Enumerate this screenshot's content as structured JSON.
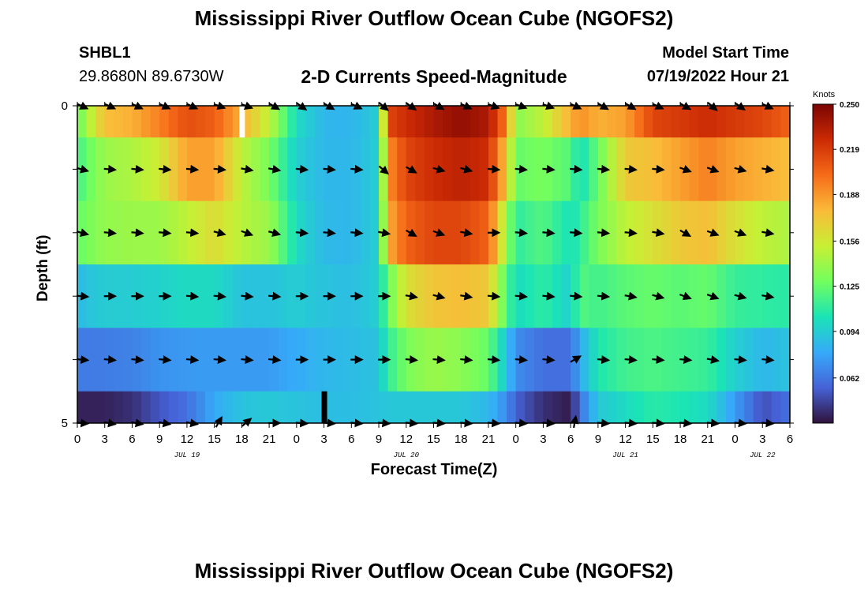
{
  "header": {
    "title": "Mississippi River Outflow Ocean Cube (NGOFS2)",
    "station_id": "SHBL1",
    "station_coords": "29.8680N  89.6730W",
    "subtitle": "2-D Currents Speed-Magnitude",
    "model_start_label": "Model Start Time",
    "model_start_value": "07/19/2022 Hour 21"
  },
  "footer": {
    "title": "Mississippi River Outflow Ocean Cube (NGOFS2)"
  },
  "chart_data": {
    "type": "heatmap",
    "title": "2-D Currents Speed-Magnitude",
    "xlabel": "Forecast Time(Z)",
    "ylabel": "Depth (ft)",
    "x_tick_labels": [
      "0",
      "3",
      "6",
      "9",
      "12",
      "15",
      "18",
      "21",
      "0",
      "3",
      "6",
      "9",
      "12",
      "15",
      "18",
      "21",
      "0",
      "3",
      "6",
      "9",
      "12",
      "15",
      "18",
      "21",
      "0",
      "3",
      "6"
    ],
    "x_range_hours": [
      0,
      78
    ],
    "date_labels": [
      {
        "text": "JUL 19",
        "hour": 12
      },
      {
        "text": "JUL 20",
        "hour": 36
      },
      {
        "text": "JUL 21",
        "hour": 60
      },
      {
        "text": "JUL 22",
        "hour": 75
      }
    ],
    "y_tick_labels": [
      "0",
      "5"
    ],
    "y_range": [
      0,
      5
    ],
    "colorbar": {
      "unit": "Knots",
      "min": 0.031,
      "max": 0.25,
      "ticks": [
        "0.250",
        "0.219",
        "0.188",
        "0.156",
        "0.125",
        "0.094",
        "0.062"
      ],
      "colors": [
        "#30123b",
        "#4662d7",
        "#36aaf9",
        "#1ae4b6",
        "#72fe5e",
        "#c8ef34",
        "#faba39",
        "#f66b19",
        "#cb2a04",
        "#7a0403"
      ]
    },
    "depth_layers": [
      0,
      1,
      2,
      3,
      4,
      5
    ],
    "speed_keyframes": [
      {
        "hour": 0,
        "values": [
          0.125,
          0.116,
          0.125,
          0.087,
          0.064,
          0.036
        ]
      },
      {
        "hour": 3,
        "values": [
          0.175,
          0.14,
          0.138,
          0.094,
          0.064,
          0.036
        ]
      },
      {
        "hour": 6,
        "values": [
          0.18,
          0.145,
          0.14,
          0.094,
          0.066,
          0.04
        ]
      },
      {
        "hour": 9,
        "values": [
          0.195,
          0.155,
          0.14,
          0.096,
          0.072,
          0.052
        ]
      },
      {
        "hour": 12,
        "values": [
          0.212,
          0.185,
          0.15,
          0.1,
          0.074,
          0.06
        ]
      },
      {
        "hour": 15,
        "values": [
          0.206,
          0.185,
          0.162,
          0.1,
          0.075,
          0.08
        ]
      },
      {
        "hour": 18,
        "values": [
          0.18,
          0.15,
          0.148,
          0.09,
          0.075,
          0.09
        ]
      },
      {
        "hour": 21,
        "values": [
          0.15,
          0.13,
          0.14,
          0.09,
          0.075,
          0.092
        ]
      },
      {
        "hour": 24,
        "values": [
          0.1,
          0.095,
          0.1,
          0.094,
          0.08,
          0.09
        ]
      },
      {
        "hour": 27,
        "values": [
          0.085,
          0.085,
          0.086,
          0.09,
          0.085,
          0.088
        ]
      },
      {
        "hour": 30,
        "values": [
          0.084,
          0.085,
          0.085,
          0.088,
          0.087,
          0.088
        ]
      },
      {
        "hour": 33,
        "values": [
          0.095,
          0.095,
          0.095,
          0.095,
          0.09,
          0.09
        ]
      },
      {
        "hour": 34,
        "values": [
          0.215,
          0.19,
          0.18,
          0.125,
          0.11,
          0.092
        ]
      },
      {
        "hour": 36,
        "values": [
          0.225,
          0.215,
          0.205,
          0.16,
          0.13,
          0.092
        ]
      },
      {
        "hour": 39,
        "values": [
          0.235,
          0.225,
          0.215,
          0.172,
          0.14,
          0.092
        ]
      },
      {
        "hour": 42,
        "values": [
          0.243,
          0.23,
          0.215,
          0.175,
          0.135,
          0.092
        ]
      },
      {
        "hour": 45,
        "values": [
          0.235,
          0.225,
          0.205,
          0.17,
          0.125,
          0.085
        ]
      },
      {
        "hour": 47,
        "values": [
          0.195,
          0.17,
          0.14,
          0.12,
          0.09,
          0.07
        ]
      },
      {
        "hour": 48,
        "values": [
          0.135,
          0.125,
          0.11,
          0.1,
          0.07,
          0.055
        ]
      },
      {
        "hour": 51,
        "values": [
          0.15,
          0.13,
          0.12,
          0.11,
          0.06,
          0.04
        ]
      },
      {
        "hour": 54,
        "values": [
          0.18,
          0.12,
          0.102,
          0.095,
          0.06,
          0.034
        ]
      },
      {
        "hour": 55,
        "values": [
          0.19,
          0.1,
          0.11,
          0.12,
          0.08,
          0.06
        ]
      },
      {
        "hour": 57,
        "values": [
          0.18,
          0.125,
          0.13,
          0.115,
          0.105,
          0.092
        ]
      },
      {
        "hour": 60,
        "values": [
          0.185,
          0.17,
          0.15,
          0.122,
          0.115,
          0.1
        ]
      },
      {
        "hour": 63,
        "values": [
          0.215,
          0.175,
          0.16,
          0.125,
          0.118,
          0.108
        ]
      },
      {
        "hour": 66,
        "values": [
          0.22,
          0.185,
          0.17,
          0.122,
          0.115,
          0.105
        ]
      },
      {
        "hour": 69,
        "values": [
          0.225,
          0.195,
          0.175,
          0.125,
          0.112,
          0.1
        ]
      },
      {
        "hour": 72,
        "values": [
          0.22,
          0.185,
          0.16,
          0.112,
          0.095,
          0.075
        ]
      },
      {
        "hour": 75,
        "values": [
          0.215,
          0.18,
          0.15,
          0.11,
          0.085,
          0.05
        ]
      },
      {
        "hour": 78,
        "values": [
          0.205,
          0.175,
          0.145,
          0.108,
          0.09,
          0.06
        ]
      }
    ],
    "vectors": {
      "hours": [
        0,
        3,
        6,
        9,
        12,
        15,
        18,
        21,
        24,
        27,
        30,
        33,
        36,
        39,
        42,
        45,
        48,
        51,
        54,
        57,
        60,
        63,
        66,
        69,
        72,
        75
      ],
      "note": "direction_deg, 0 = east, positive = rotation toward south",
      "rows": [
        [
          25,
          25,
          25,
          25,
          25,
          20,
          20,
          30,
          35,
          30,
          25,
          40,
          35,
          30,
          25,
          20,
          20,
          20,
          25,
          30,
          30,
          25,
          30,
          40,
          35,
          25
        ],
        [
          15,
          5,
          5,
          5,
          5,
          5,
          10,
          10,
          5,
          5,
          5,
          40,
          30,
          15,
          15,
          5,
          5,
          5,
          5,
          5,
          5,
          5,
          20,
          20,
          15,
          10
        ],
        [
          15,
          5,
          5,
          5,
          5,
          15,
          20,
          15,
          5,
          5,
          5,
          10,
          30,
          20,
          10,
          0,
          5,
          5,
          5,
          5,
          5,
          10,
          30,
          20,
          20,
          10
        ],
        [
          5,
          0,
          0,
          0,
          5,
          5,
          5,
          5,
          0,
          0,
          0,
          0,
          10,
          15,
          10,
          5,
          5,
          5,
          5,
          5,
          10,
          15,
          20,
          20,
          15,
          10
        ],
        [
          5,
          5,
          5,
          5,
          5,
          5,
          5,
          5,
          0,
          0,
          0,
          0,
          5,
          5,
          5,
          5,
          5,
          5,
          -30,
          5,
          5,
          5,
          5,
          10,
          5,
          5
        ],
        [
          5,
          10,
          10,
          10,
          10,
          -60,
          -40,
          0,
          5,
          5,
          5,
          5,
          5,
          5,
          5,
          5,
          5,
          5,
          -80,
          5,
          5,
          5,
          5,
          5,
          5,
          5
        ]
      ]
    },
    "missing_cells": [
      {
        "hour": 18,
        "row": 0,
        "color": "#ffffff"
      },
      {
        "hour": 27,
        "row": 5,
        "color": "#000000"
      }
    ]
  }
}
